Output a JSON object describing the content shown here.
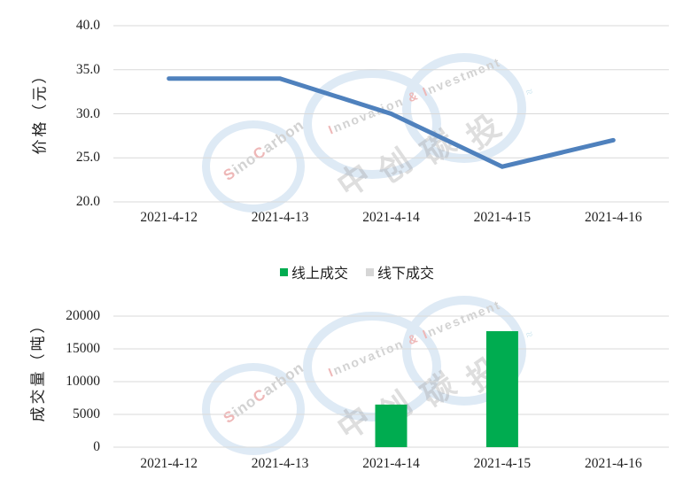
{
  "chart_data": [
    {
      "type": "line",
      "name": "carbon-price-trend",
      "categories": [
        "2021-4-12",
        "2021-4-13",
        "2021-4-14",
        "2021-4-15",
        "2021-4-16"
      ],
      "series": [
        {
          "name": "价格",
          "color": "#4F81BD",
          "values": [
            34.0,
            34.0,
            30.0,
            24.0,
            27.0
          ]
        }
      ],
      "ylabel": "价格（元）",
      "ylim": [
        20,
        40
      ],
      "yticks": [
        40,
        35,
        30,
        25,
        20
      ],
      "y_tick_labels": [
        "40.0",
        "35.0",
        "30.0",
        "25.0",
        "20.0"
      ],
      "grid": true,
      "legend": false
    },
    {
      "type": "bar",
      "name": "trade-volume",
      "categories": [
        "2021-4-12",
        "2021-4-13",
        "2021-4-14",
        "2021-4-15",
        "2021-4-16"
      ],
      "series": [
        {
          "name": "线上成交",
          "color": "#00AC50",
          "values": [
            0,
            0,
            6500,
            17700,
            0
          ]
        },
        {
          "name": "线下成交",
          "color": "#D6D6D6",
          "values": [
            0,
            0,
            0,
            0,
            0
          ]
        }
      ],
      "ylabel": "成交量（吨）",
      "ylim": [
        0,
        20000
      ],
      "yticks": [
        20000,
        15000,
        10000,
        5000,
        0
      ],
      "y_tick_labels": [
        "20000",
        "15000",
        "10000",
        "5000",
        "0"
      ],
      "grid": true,
      "legend": true,
      "legend_position": "top-center"
    }
  ],
  "colors": {
    "gridline": "#D9D9D9",
    "tick_text": "#1f1f1f",
    "line_blue": "#4F81BD",
    "bar_green": "#00AC50",
    "legend_gray": "#D6D6D6"
  },
  "watermark": {
    "brand_segments": [
      {
        "t": "S",
        "red": true
      },
      {
        "t": "ino",
        "red": false
      },
      {
        "t": "C",
        "red": true
      },
      {
        "t": "arbon",
        "red": false
      }
    ],
    "tagline_segments": [
      {
        "t": "I",
        "red": true
      },
      {
        "t": "nnovation ",
        "red": false
      },
      {
        "t": "&",
        "red": true
      },
      {
        "t": " ",
        "red": false
      },
      {
        "t": "I",
        "red": true
      },
      {
        "t": "nvestment",
        "red": false
      }
    ],
    "cn_chars": [
      "中",
      "创",
      "碳",
      "投"
    ],
    "gray": "#c4c4c4",
    "red": "#e9a0a0",
    "swoosh": "≈"
  }
}
